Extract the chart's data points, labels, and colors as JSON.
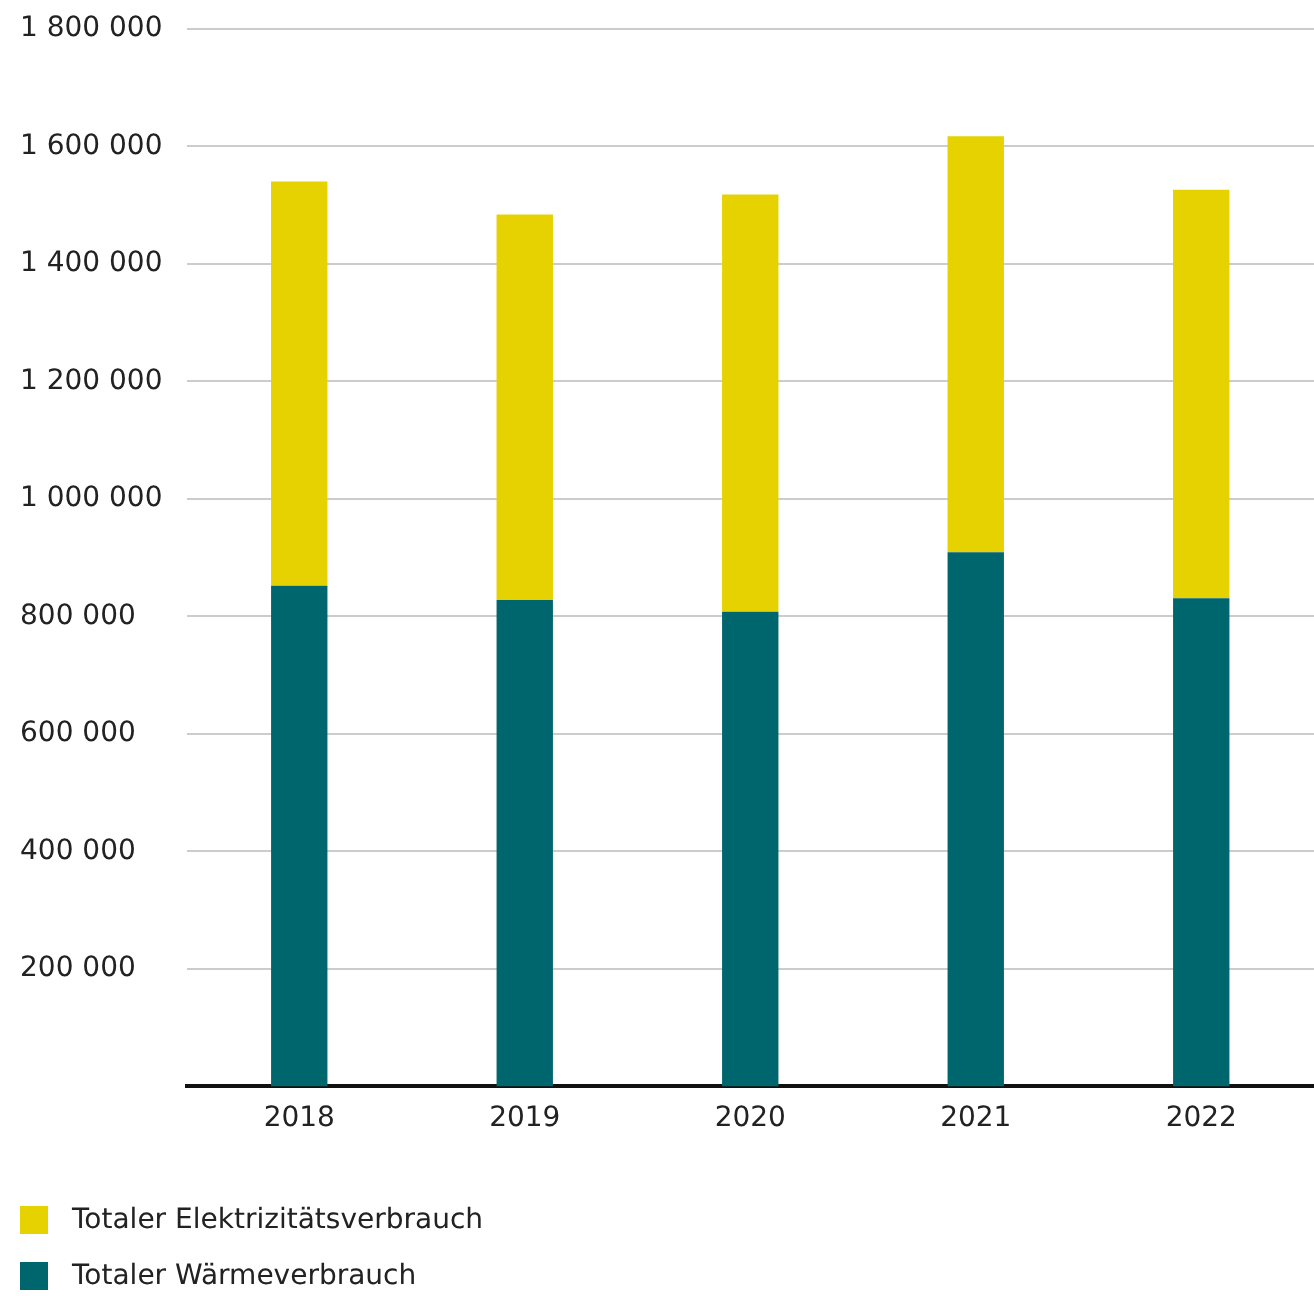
{
  "chart_data": {
    "type": "bar",
    "stacked": true,
    "categories": [
      "2018",
      "2019",
      "2020",
      "2021",
      "2022"
    ],
    "series": [
      {
        "name": "Totaler Wärmeverbrauch",
        "color": "#00666e",
        "values": [
          852000,
          828000,
          808000,
          909000,
          831000
        ]
      },
      {
        "name": "Totaler Elektrizitätsverbrauch",
        "color": "#e5d200",
        "values": [
          688000,
          656000,
          710000,
          708000,
          695000
        ]
      }
    ],
    "ylim": [
      0,
      1800000
    ],
    "yticks": [
      {
        "value": 200000,
        "label": "200 000"
      },
      {
        "value": 400000,
        "label": "400 000"
      },
      {
        "value": 600000,
        "label": "600 000"
      },
      {
        "value": 800000,
        "label": "800 000"
      },
      {
        "value": 1000000,
        "label": "1 000 000"
      },
      {
        "value": 1200000,
        "label": "1 200 000"
      },
      {
        "value": 1400000,
        "label": "1 400 000"
      },
      {
        "value": 1600000,
        "label": "1 600 000"
      },
      {
        "value": 1800000,
        "label": "1 800 000"
      }
    ],
    "grid": "y",
    "legend": "bottom left"
  }
}
